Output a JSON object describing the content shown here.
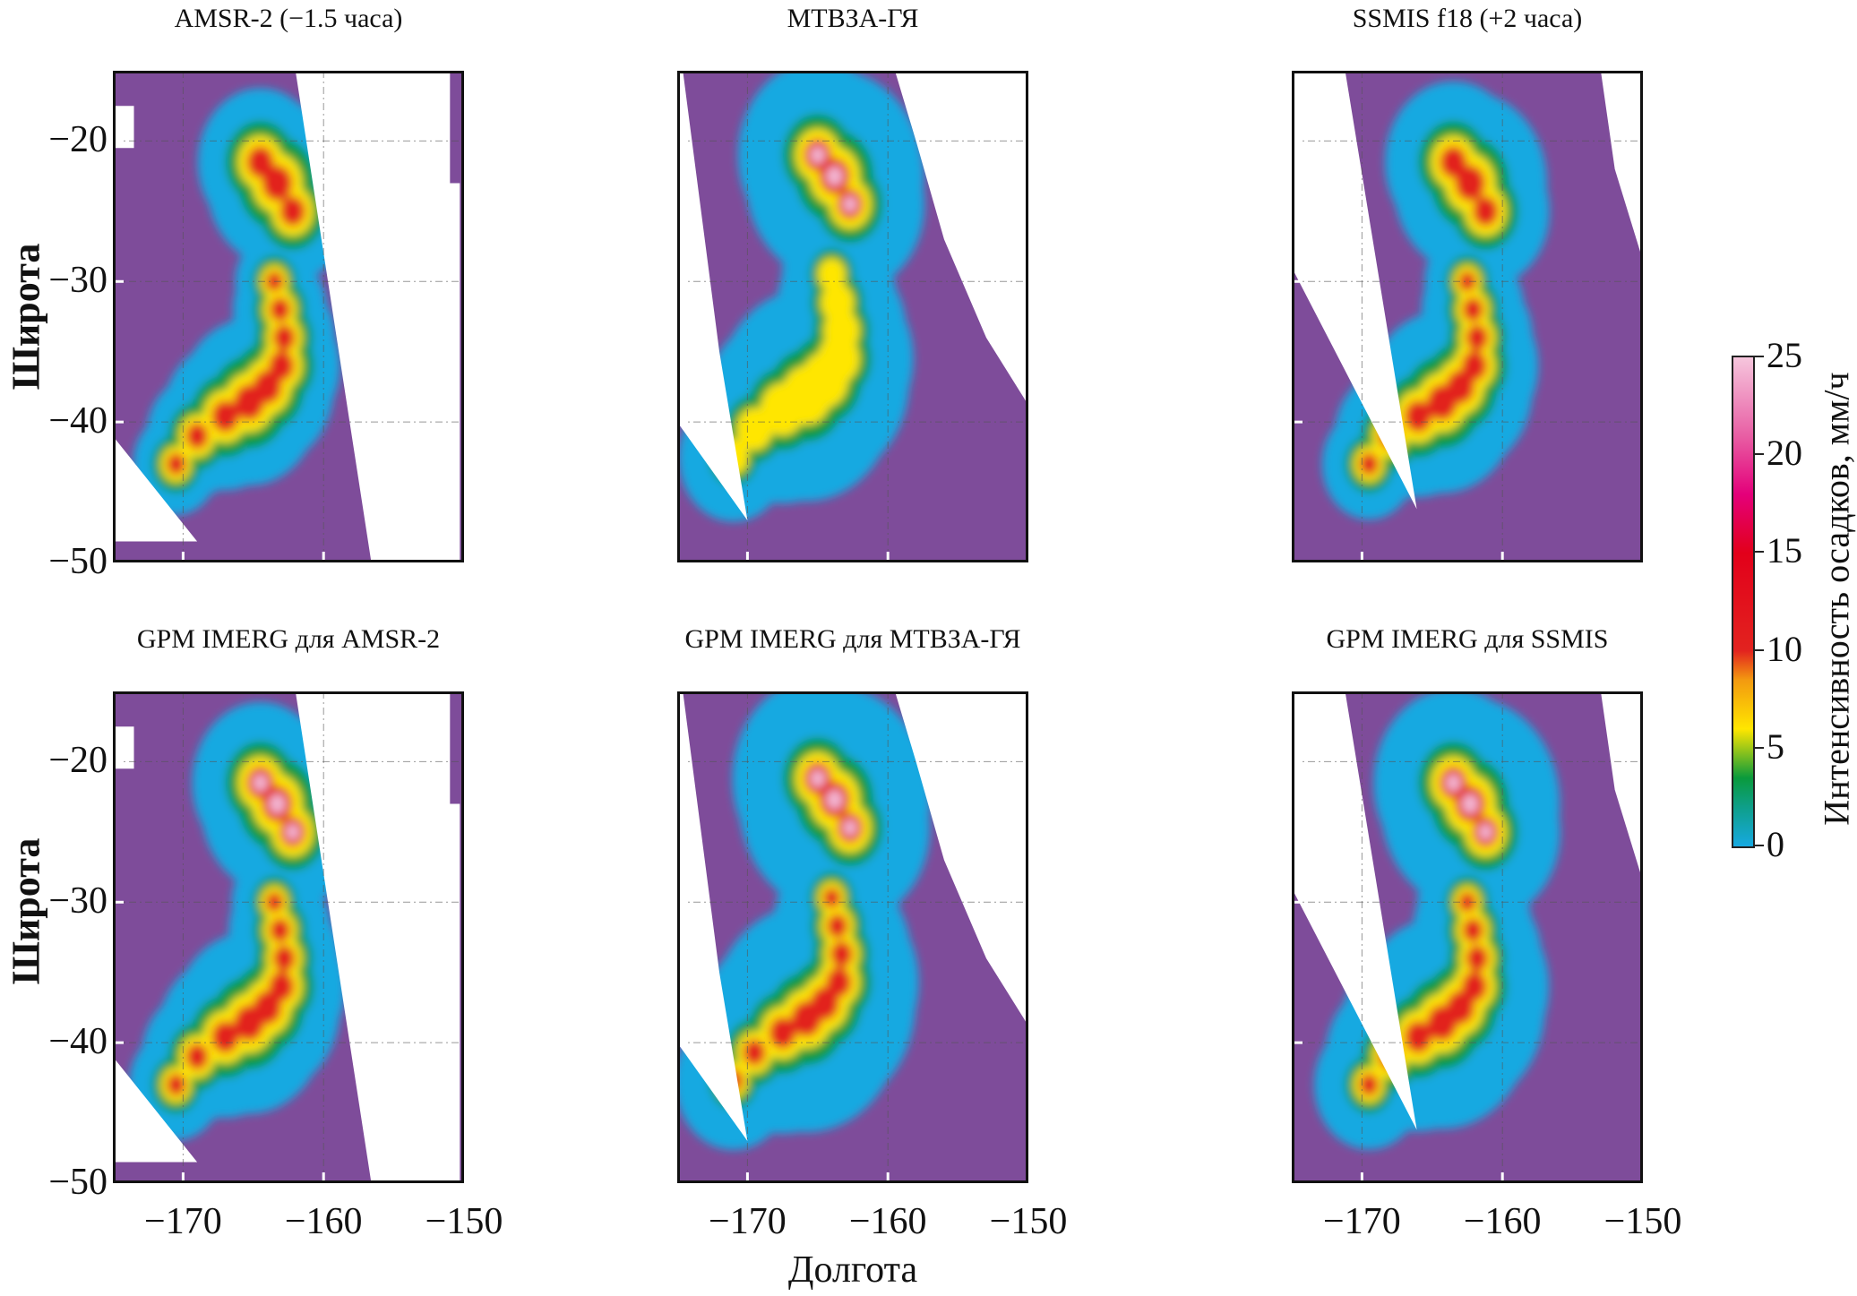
{
  "chart_data": {
    "type": "heatmap",
    "panels": [
      {
        "title": "AMSR-2 (−1.5 часа)"
      },
      {
        "title": "МТВЗА-ГЯ"
      },
      {
        "title": "SSMIS f18 (+2 часа)"
      },
      {
        "title": "GPM IMERG для AMSR-2"
      },
      {
        "title": "GPM IMERG для МТВЗА-ГЯ"
      },
      {
        "title": "GPM IMERG для SSMIS"
      }
    ],
    "xlabel": "Долгота",
    "ylabel": "Широта",
    "xlim": [
      -175,
      -150
    ],
    "ylim": [
      -50,
      -15
    ],
    "x_ticks": [
      "−170",
      "−160",
      "−150"
    ],
    "x_tick_values": [
      -170,
      -160,
      -150
    ],
    "y_ticks": [
      "−20",
      "−30",
      "−40",
      "−50"
    ],
    "y_tick_values": [
      -20,
      -30,
      -40,
      -50
    ],
    "grid": true,
    "colorbar": {
      "label": "Интенсивность осадков, мм/ч",
      "range": [
        0,
        25
      ],
      "ticks": [
        "0",
        "5",
        "10",
        "15",
        "20",
        "25"
      ],
      "tick_values": [
        0,
        5,
        10,
        15,
        20,
        25
      ],
      "colors": [
        "#17a9e1",
        "#0e9f8a",
        "#0a9a3c",
        "#ffe600",
        "#f39a10",
        "#e2231f",
        "#e2001a",
        "#e4007a",
        "#e85fa4",
        "#f6c6dd"
      ]
    },
    "background_color": "#7e4c9a",
    "no_data_color": "#ffffff"
  }
}
